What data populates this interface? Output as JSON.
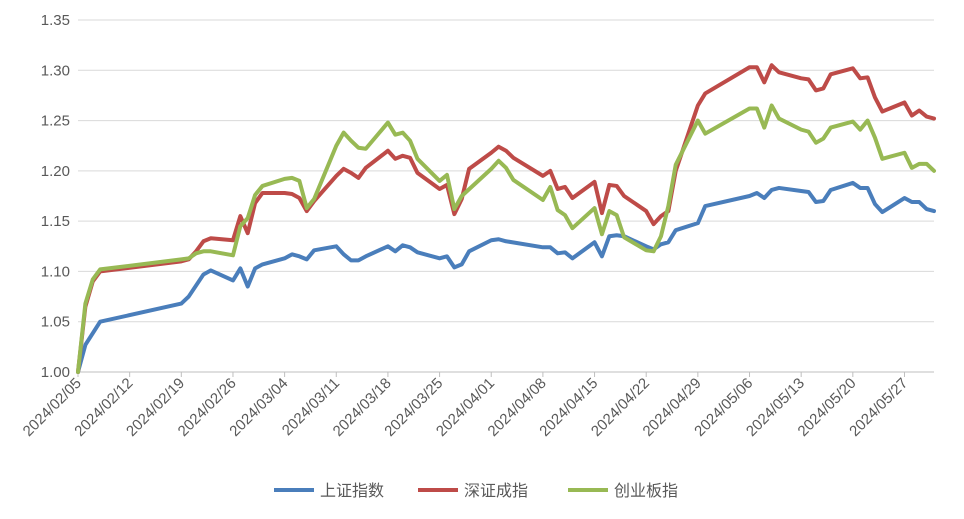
{
  "chart_data": {
    "type": "line",
    "title": "",
    "xlabel": "",
    "ylabel": "",
    "ylim": [
      1.0,
      1.35
    ],
    "y_ticks": [
      "1.00",
      "1.05",
      "1.10",
      "1.15",
      "1.20",
      "1.25",
      "1.30",
      "1.35"
    ],
    "x_ticks": [
      "2024/02/05",
      "2024/02/12",
      "2024/02/19",
      "2024/02/26",
      "2024/03/04",
      "2024/03/11",
      "2024/03/18",
      "2024/03/25",
      "2024/04/01",
      "2024/04/08",
      "2024/04/15",
      "2024/04/22",
      "2024/04/29",
      "2024/05/06",
      "2024/05/13",
      "2024/05/20",
      "2024/05/27"
    ],
    "x_range": [
      "2024/02/05",
      "2024/05/31"
    ],
    "grid": "horizontal",
    "legend_position": "bottom",
    "series": [
      {
        "name": "上证指数",
        "color": "#4a7ebb",
        "points": [
          [
            "2024/02/05",
            1.0
          ],
          [
            "2024/02/06",
            1.027
          ],
          [
            "2024/02/08",
            1.05
          ],
          [
            "2024/02/19",
            1.068
          ],
          [
            "2024/02/20",
            1.075
          ],
          [
            "2024/02/22",
            1.097
          ],
          [
            "2024/02/23",
            1.101
          ],
          [
            "2024/02/26",
            1.091
          ],
          [
            "2024/02/27",
            1.103
          ],
          [
            "2024/02/28",
            1.085
          ],
          [
            "2024/02/29",
            1.103
          ],
          [
            "2024/03/01",
            1.107
          ],
          [
            "2024/03/04",
            1.113
          ],
          [
            "2024/03/05",
            1.117
          ],
          [
            "2024/03/06",
            1.115
          ],
          [
            "2024/03/07",
            1.112
          ],
          [
            "2024/03/08",
            1.121
          ],
          [
            "2024/03/11",
            1.125
          ],
          [
            "2024/03/12",
            1.117
          ],
          [
            "2024/03/13",
            1.111
          ],
          [
            "2024/03/14",
            1.111
          ],
          [
            "2024/03/15",
            1.115
          ],
          [
            "2024/03/18",
            1.125
          ],
          [
            "2024/03/19",
            1.12
          ],
          [
            "2024/03/20",
            1.126
          ],
          [
            "2024/03/21",
            1.124
          ],
          [
            "2024/03/22",
            1.119
          ],
          [
            "2024/03/25",
            1.113
          ],
          [
            "2024/03/26",
            1.115
          ],
          [
            "2024/03/27",
            1.104
          ],
          [
            "2024/03/28",
            1.107
          ],
          [
            "2024/03/29",
            1.12
          ],
          [
            "2024/04/01",
            1.131
          ],
          [
            "2024/04/02",
            1.132
          ],
          [
            "2024/04/03",
            1.13
          ],
          [
            "2024/04/08",
            1.124
          ],
          [
            "2024/04/09",
            1.124
          ],
          [
            "2024/04/10",
            1.118
          ],
          [
            "2024/04/11",
            1.119
          ],
          [
            "2024/04/12",
            1.113
          ],
          [
            "2024/04/15",
            1.129
          ],
          [
            "2024/04/16",
            1.115
          ],
          [
            "2024/04/17",
            1.135
          ],
          [
            "2024/04/18",
            1.136
          ],
          [
            "2024/04/19",
            1.135
          ],
          [
            "2024/04/22",
            1.125
          ],
          [
            "2024/04/23",
            1.122
          ],
          [
            "2024/04/24",
            1.127
          ],
          [
            "2024/04/25",
            1.129
          ],
          [
            "2024/04/26",
            1.141
          ],
          [
            "2024/04/29",
            1.148
          ],
          [
            "2024/04/30",
            1.165
          ],
          [
            "2024/05/06",
            1.175
          ],
          [
            "2024/05/07",
            1.178
          ],
          [
            "2024/05/08",
            1.173
          ],
          [
            "2024/05/09",
            1.181
          ],
          [
            "2024/05/10",
            1.183
          ],
          [
            "2024/05/13",
            1.18
          ],
          [
            "2024/05/14",
            1.179
          ],
          [
            "2024/05/15",
            1.169
          ],
          [
            "2024/05/16",
            1.17
          ],
          [
            "2024/05/17",
            1.181
          ],
          [
            "2024/05/20",
            1.188
          ],
          [
            "2024/05/21",
            1.183
          ],
          [
            "2024/05/22",
            1.183
          ],
          [
            "2024/05/23",
            1.167
          ],
          [
            "2024/05/24",
            1.159
          ],
          [
            "2024/05/27",
            1.173
          ],
          [
            "2024/05/28",
            1.169
          ],
          [
            "2024/05/29",
            1.169
          ],
          [
            "2024/05/30",
            1.162
          ],
          [
            "2024/05/31",
            1.16
          ]
        ]
      },
      {
        "name": "深证成指",
        "color": "#be4b48",
        "points": [
          [
            "2024/02/05",
            1.0
          ],
          [
            "2024/02/06",
            1.065
          ],
          [
            "2024/02/07",
            1.09
          ],
          [
            "2024/02/08",
            1.1
          ],
          [
            "2024/02/19",
            1.11
          ],
          [
            "2024/02/20",
            1.112
          ],
          [
            "2024/02/21",
            1.12
          ],
          [
            "2024/02/22",
            1.13
          ],
          [
            "2024/02/23",
            1.133
          ],
          [
            "2024/02/26",
            1.131
          ],
          [
            "2024/02/27",
            1.155
          ],
          [
            "2024/02/28",
            1.138
          ],
          [
            "2024/02/29",
            1.168
          ],
          [
            "2024/03/01",
            1.178
          ],
          [
            "2024/03/04",
            1.178
          ],
          [
            "2024/03/05",
            1.177
          ],
          [
            "2024/03/06",
            1.173
          ],
          [
            "2024/03/07",
            1.16
          ],
          [
            "2024/03/08",
            1.17
          ],
          [
            "2024/03/11",
            1.195
          ],
          [
            "2024/03/12",
            1.202
          ],
          [
            "2024/03/13",
            1.198
          ],
          [
            "2024/03/14",
            1.193
          ],
          [
            "2024/03/15",
            1.203
          ],
          [
            "2024/03/18",
            1.22
          ],
          [
            "2024/03/19",
            1.212
          ],
          [
            "2024/03/20",
            1.215
          ],
          [
            "2024/03/21",
            1.213
          ],
          [
            "2024/03/22",
            1.198
          ],
          [
            "2024/03/25",
            1.182
          ],
          [
            "2024/03/26",
            1.186
          ],
          [
            "2024/03/27",
            1.157
          ],
          [
            "2024/03/28",
            1.172
          ],
          [
            "2024/03/29",
            1.202
          ],
          [
            "2024/04/01",
            1.218
          ],
          [
            "2024/04/02",
            1.224
          ],
          [
            "2024/04/03",
            1.22
          ],
          [
            "2024/04/04",
            1.213
          ],
          [
            "2024/04/08",
            1.195
          ],
          [
            "2024/04/09",
            1.2
          ],
          [
            "2024/04/10",
            1.182
          ],
          [
            "2024/04/11",
            1.184
          ],
          [
            "2024/04/12",
            1.173
          ],
          [
            "2024/04/15",
            1.189
          ],
          [
            "2024/04/16",
            1.158
          ],
          [
            "2024/04/17",
            1.186
          ],
          [
            "2024/04/18",
            1.185
          ],
          [
            "2024/04/19",
            1.175
          ],
          [
            "2024/04/22",
            1.16
          ],
          [
            "2024/04/23",
            1.147
          ],
          [
            "2024/04/24",
            1.155
          ],
          [
            "2024/04/25",
            1.16
          ],
          [
            "2024/04/26",
            1.2
          ],
          [
            "2024/04/29",
            1.265
          ],
          [
            "2024/04/30",
            1.277
          ],
          [
            "2024/05/06",
            1.303
          ],
          [
            "2024/05/07",
            1.303
          ],
          [
            "2024/05/08",
            1.288
          ],
          [
            "2024/05/09",
            1.305
          ],
          [
            "2024/05/10",
            1.298
          ],
          [
            "2024/05/13",
            1.292
          ],
          [
            "2024/05/14",
            1.291
          ],
          [
            "2024/05/15",
            1.28
          ],
          [
            "2024/05/16",
            1.282
          ],
          [
            "2024/05/17",
            1.296
          ],
          [
            "2024/05/20",
            1.302
          ],
          [
            "2024/05/21",
            1.292
          ],
          [
            "2024/05/22",
            1.293
          ],
          [
            "2024/05/23",
            1.273
          ],
          [
            "2024/05/24",
            1.259
          ],
          [
            "2024/05/27",
            1.268
          ],
          [
            "2024/05/28",
            1.255
          ],
          [
            "2024/05/29",
            1.26
          ],
          [
            "2024/05/30",
            1.254
          ],
          [
            "2024/05/31",
            1.252
          ]
        ]
      },
      {
        "name": "创业板指",
        "color": "#98b954",
        "points": [
          [
            "2024/02/05",
            1.0
          ],
          [
            "2024/02/06",
            1.068
          ],
          [
            "2024/02/07",
            1.092
          ],
          [
            "2024/02/08",
            1.102
          ],
          [
            "2024/02/19",
            1.112
          ],
          [
            "2024/02/20",
            1.113
          ],
          [
            "2024/02/21",
            1.118
          ],
          [
            "2024/02/22",
            1.12
          ],
          [
            "2024/02/23",
            1.12
          ],
          [
            "2024/02/26",
            1.116
          ],
          [
            "2024/02/27",
            1.145
          ],
          [
            "2024/02/28",
            1.153
          ],
          [
            "2024/02/29",
            1.176
          ],
          [
            "2024/03/01",
            1.185
          ],
          [
            "2024/03/04",
            1.192
          ],
          [
            "2024/03/05",
            1.193
          ],
          [
            "2024/03/06",
            1.19
          ],
          [
            "2024/03/07",
            1.163
          ],
          [
            "2024/03/08",
            1.172
          ],
          [
            "2024/03/11",
            1.225
          ],
          [
            "2024/03/12",
            1.238
          ],
          [
            "2024/03/13",
            1.23
          ],
          [
            "2024/03/14",
            1.223
          ],
          [
            "2024/03/15",
            1.222
          ],
          [
            "2024/03/18",
            1.248
          ],
          [
            "2024/03/19",
            1.236
          ],
          [
            "2024/03/20",
            1.238
          ],
          [
            "2024/03/21",
            1.23
          ],
          [
            "2024/03/22",
            1.212
          ],
          [
            "2024/03/25",
            1.19
          ],
          [
            "2024/03/26",
            1.196
          ],
          [
            "2024/03/27",
            1.162
          ],
          [
            "2024/03/28",
            1.175
          ],
          [
            "2024/04/01",
            1.202
          ],
          [
            "2024/04/02",
            1.21
          ],
          [
            "2024/04/03",
            1.203
          ],
          [
            "2024/04/04",
            1.191
          ],
          [
            "2024/04/08",
            1.171
          ],
          [
            "2024/04/09",
            1.184
          ],
          [
            "2024/04/10",
            1.161
          ],
          [
            "2024/04/11",
            1.156
          ],
          [
            "2024/04/12",
            1.143
          ],
          [
            "2024/04/15",
            1.163
          ],
          [
            "2024/04/16",
            1.137
          ],
          [
            "2024/04/17",
            1.16
          ],
          [
            "2024/04/18",
            1.156
          ],
          [
            "2024/04/19",
            1.134
          ],
          [
            "2024/04/22",
            1.121
          ],
          [
            "2024/04/23",
            1.12
          ],
          [
            "2024/04/24",
            1.135
          ],
          [
            "2024/04/25",
            1.165
          ],
          [
            "2024/04/26",
            1.206
          ],
          [
            "2024/04/29",
            1.25
          ],
          [
            "2024/04/30",
            1.237
          ],
          [
            "2024/05/06",
            1.262
          ],
          [
            "2024/05/07",
            1.262
          ],
          [
            "2024/05/08",
            1.243
          ],
          [
            "2024/05/09",
            1.265
          ],
          [
            "2024/05/10",
            1.252
          ],
          [
            "2024/05/13",
            1.241
          ],
          [
            "2024/05/14",
            1.239
          ],
          [
            "2024/05/15",
            1.228
          ],
          [
            "2024/05/16",
            1.232
          ],
          [
            "2024/05/17",
            1.243
          ],
          [
            "2024/05/20",
            1.249
          ],
          [
            "2024/05/21",
            1.241
          ],
          [
            "2024/05/22",
            1.25
          ],
          [
            "2024/05/23",
            1.233
          ],
          [
            "2024/05/24",
            1.212
          ],
          [
            "2024/05/27",
            1.218
          ],
          [
            "2024/05/28",
            1.203
          ],
          [
            "2024/05/29",
            1.207
          ],
          [
            "2024/05/30",
            1.207
          ],
          [
            "2024/05/31",
            1.2
          ]
        ]
      }
    ]
  }
}
